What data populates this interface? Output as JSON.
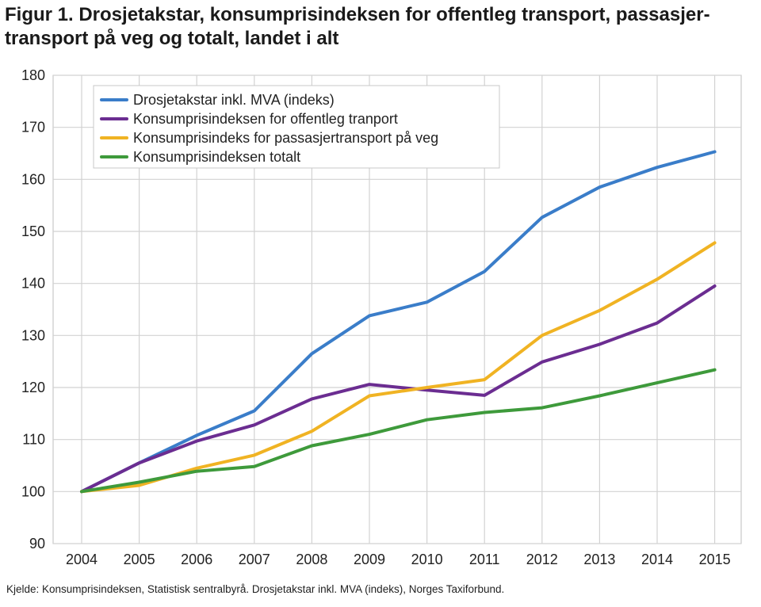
{
  "title_line1": "Figur 1. Drosjetakstar, konsumprisindeksen for offentleg transport, passasjer-",
  "title_line2": "transport på veg og totalt, landet i alt",
  "source": "Kjelde: Konsumprisindeksen, Statistisk sentralbyrå. Drosjetakstar inkl. MVA (indeks), Norges Taxiforbund.",
  "chart_data": {
    "type": "line",
    "title": "Figur 1. Drosjetakstar, konsumprisindeksen for offentleg transport, passasjer-transport på veg og totalt, landet i alt",
    "xlabel": "",
    "ylabel": "",
    "x": [
      "2004",
      "2005",
      "2006",
      "2007",
      "2008",
      "2009",
      "2010",
      "2011",
      "2012",
      "2013",
      "2014",
      "2015"
    ],
    "ylim": [
      90,
      180
    ],
    "yticks": [
      90,
      100,
      110,
      120,
      130,
      140,
      150,
      160,
      170,
      180
    ],
    "grid": true,
    "legend_position": "top-left",
    "series": [
      {
        "name": "Drosjetakstar inkl. MVA (indeks)",
        "color": "#3a7dc9",
        "values": [
          100,
          105.5,
          110.8,
          115.5,
          126.5,
          133.8,
          136.4,
          142.3,
          152.7,
          158.5,
          162.3,
          165.3
        ]
      },
      {
        "name": "Konsumprisindeksen for offentleg tranport",
        "color": "#6b2d91",
        "values": [
          100,
          105.5,
          109.7,
          112.8,
          117.8,
          120.6,
          119.5,
          118.5,
          124.9,
          128.3,
          132.4,
          139.5
        ]
      },
      {
        "name": "Konsumprisindeks for passasjertransport på veg",
        "color": "#f0b323",
        "values": [
          100,
          101.2,
          104.5,
          107.0,
          111.6,
          118.4,
          120.0,
          121.5,
          130.0,
          134.8,
          140.8,
          147.8
        ]
      },
      {
        "name": "Konsumprisindeksen totalt",
        "color": "#3e9a3b",
        "values": [
          100,
          101.8,
          103.9,
          104.8,
          108.8,
          111.0,
          113.8,
          115.2,
          116.1,
          118.4,
          120.9,
          123.4
        ]
      }
    ]
  }
}
